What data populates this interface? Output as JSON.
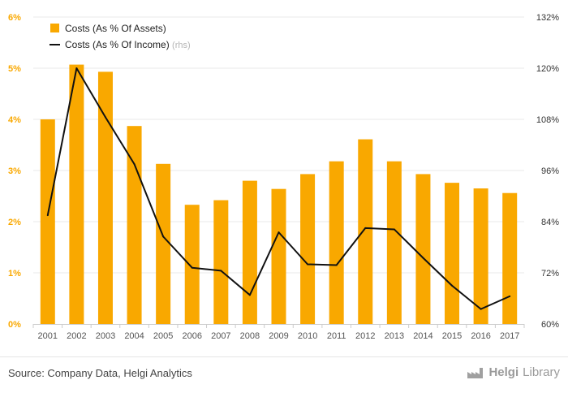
{
  "chart_data": {
    "type": "bar",
    "categories": [
      "2001",
      "2002",
      "2003",
      "2004",
      "2005",
      "2006",
      "2007",
      "2008",
      "2009",
      "2010",
      "2011",
      "2012",
      "2013",
      "2014",
      "2015",
      "2016",
      "2017"
    ],
    "series": [
      {
        "name": "Costs (As % Of Assets)",
        "type": "bar",
        "axis": "left",
        "color": "#f9a800",
        "values": [
          4.0,
          5.07,
          4.93,
          3.87,
          3.13,
          2.33,
          2.42,
          2.8,
          2.64,
          2.93,
          3.18,
          3.61,
          3.18,
          2.93,
          2.76,
          2.65,
          2.56
        ]
      },
      {
        "name": "Costs (As % Of Income)",
        "name_suffix": "(rhs)",
        "type": "line",
        "axis": "right",
        "color": "#111111",
        "values": [
          85.5,
          120.0,
          108.5,
          97.5,
          80.5,
          73.2,
          72.5,
          66.8,
          81.5,
          74.0,
          73.8,
          82.5,
          82.2,
          75.5,
          69.0,
          63.5,
          66.5
        ]
      }
    ],
    "y_left": {
      "ylim": [
        0,
        6
      ],
      "ticks": [
        "0%",
        "1%",
        "2%",
        "3%",
        "4%",
        "5%",
        "6%"
      ],
      "color": "#f9a800"
    },
    "y_right": {
      "ylim": [
        60,
        132
      ],
      "ticks": [
        "60%",
        "72%",
        "84%",
        "96%",
        "108%",
        "120%",
        "132%"
      ],
      "color": "#333333"
    },
    "grid": true,
    "legend_position": "top-left"
  },
  "footer": {
    "source": "Source: Company Data, Helgi Analytics",
    "brand_bold": "Helgi",
    "brand_light": "Library"
  }
}
